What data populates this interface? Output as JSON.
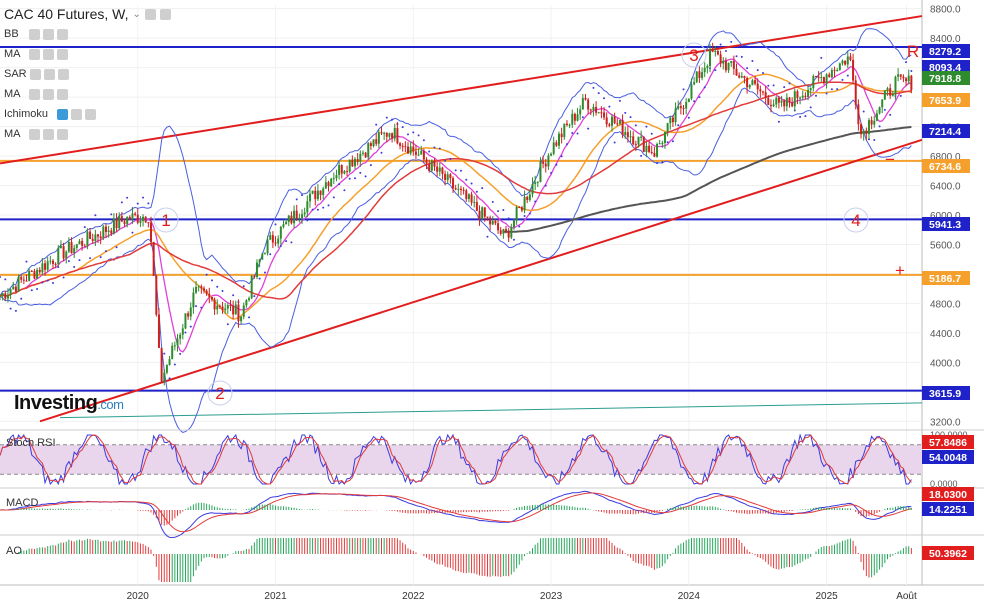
{
  "header": {
    "title": "CAC 40 Futures, W,",
    "indicators": [
      {
        "label": "BB"
      },
      {
        "label": "MA"
      },
      {
        "label": "SAR"
      },
      {
        "label": "MA"
      },
      {
        "label": "Ichimoku"
      },
      {
        "label": "MA"
      }
    ]
  },
  "brand": {
    "name": "Investing",
    "suffix": ".com"
  },
  "colors": {
    "up_candle": "#2e8b2e",
    "down_candle": "#cc1f1f",
    "blue_level": "#1e22c8",
    "orange_level": "#f5a02c",
    "trend_red": "#e21d1d",
    "sma200": "#555555",
    "bb": "#4a5fe0",
    "panel_fill": "#e9d5ec"
  },
  "chart_data": [
    {
      "panel": "price",
      "type": "candlestick",
      "title": "CAC 40 Futures, W,",
      "x_ticks": [
        "2020",
        "2021",
        "2022",
        "2023",
        "2024",
        "2025",
        "Août"
      ],
      "y_ticks": [
        3200,
        3600,
        4000,
        4400,
        4800,
        5200,
        5600,
        6000,
        6400,
        6800,
        7200,
        7600,
        8000,
        8400,
        8800
      ],
      "ylim": [
        3150,
        8850
      ],
      "price_flags": [
        {
          "label": "8279.2",
          "color": "#1e22c8"
        },
        {
          "label": "8093.4",
          "color": "#1e22c8"
        },
        {
          "label": "7918.8",
          "color": "#2e8b2e"
        },
        {
          "label": "7653.9",
          "color": "#f5a02c"
        },
        {
          "label": "7214.4",
          "color": "#1e22c8"
        },
        {
          "label": "6734.6",
          "color": "#f5a02c"
        },
        {
          "label": "5941.3",
          "color": "#1e22c8"
        },
        {
          "label": "5186.7",
          "color": "#f5a02c"
        },
        {
          "label": "3615.9",
          "color": "#1e22c8"
        }
      ],
      "horizontal_levels": [
        {
          "value": 8279.2,
          "color": "blue"
        },
        {
          "value": 6734.6,
          "color": "orange"
        },
        {
          "value": 5941.3,
          "color": "blue"
        },
        {
          "value": 5186.7,
          "color": "orange"
        },
        {
          "value": 3615.9,
          "color": "blue"
        }
      ],
      "annotations": [
        "1",
        "2",
        "3",
        "4",
        "R",
        "+",
        "−"
      ],
      "series_approx_close": [
        {
          "date": "2019-01",
          "close": 4900
        },
        {
          "date": "2019-06",
          "close": 5450
        },
        {
          "date": "2019-12",
          "close": 5950
        },
        {
          "date": "2020-02",
          "close": 6000
        },
        {
          "date": "2020-03",
          "close": 3750
        },
        {
          "date": "2020-06",
          "close": 4950
        },
        {
          "date": "2020-10",
          "close": 4650
        },
        {
          "date": "2020-12",
          "close": 5550
        },
        {
          "date": "2021-06",
          "close": 6550
        },
        {
          "date": "2021-11",
          "close": 7150
        },
        {
          "date": "2022-03",
          "close": 6600
        },
        {
          "date": "2022-09",
          "close": 5700
        },
        {
          "date": "2023-01",
          "close": 6900
        },
        {
          "date": "2023-04",
          "close": 7550
        },
        {
          "date": "2023-10",
          "close": 6850
        },
        {
          "date": "2024-03",
          "close": 8200
        },
        {
          "date": "2024-09",
          "close": 7450
        },
        {
          "date": "2025-03",
          "close": 8150
        },
        {
          "date": "2025-04",
          "close": 7100
        },
        {
          "date": "2025-07",
          "close": 7800
        }
      ]
    },
    {
      "panel": "stoch_rsi",
      "type": "line",
      "label": "Stoch RSI",
      "y_ticks": [
        "100.0000",
        "0.0000"
      ],
      "values_flags": [
        {
          "label": "57.8486",
          "color": "#e21d1d"
        },
        {
          "label": "54.0048",
          "color": "#1e22c8"
        }
      ]
    },
    {
      "panel": "macd",
      "type": "line",
      "label": "MACD",
      "values_flags": [
        {
          "label": "18.0300",
          "color": "#e21d1d"
        },
        {
          "label": "14.2251",
          "color": "#1e22c8"
        }
      ]
    },
    {
      "panel": "ao",
      "type": "bar",
      "label": "AO",
      "values_flags": [
        {
          "label": "50.3962",
          "color": "#e21d1d"
        }
      ]
    }
  ]
}
